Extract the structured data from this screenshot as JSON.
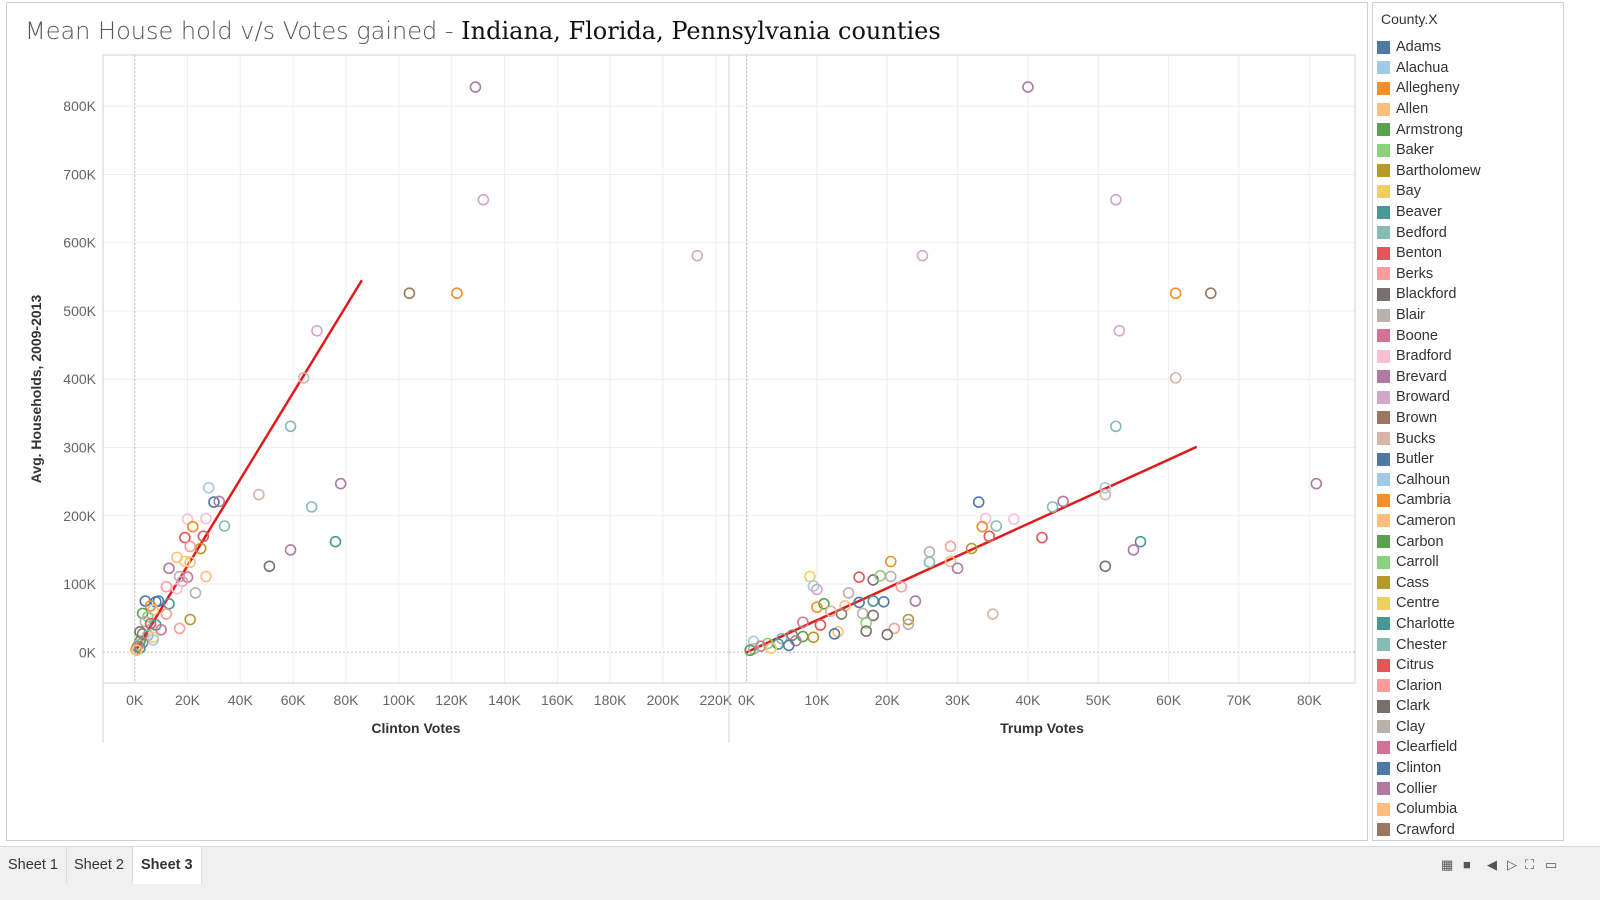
{
  "title": {
    "part1": "Mean House hold v/s Votes gained - ",
    "part2": "Indiana, Florida, Pennsylvania counties"
  },
  "legend": {
    "title": "County.X",
    "items": [
      {
        "label": "Adams",
        "color": "#4e79a7"
      },
      {
        "label": "Alachua",
        "color": "#a0cbe8"
      },
      {
        "label": "Allegheny",
        "color": "#f28e2b"
      },
      {
        "label": "Allen",
        "color": "#ffbe7d"
      },
      {
        "label": "Armstrong",
        "color": "#59a14f"
      },
      {
        "label": "Baker",
        "color": "#8cd17d"
      },
      {
        "label": "Bartholomew",
        "color": "#b6992d"
      },
      {
        "label": "Bay",
        "color": "#f1ce63"
      },
      {
        "label": "Beaver",
        "color": "#499894"
      },
      {
        "label": "Bedford",
        "color": "#86bcb6"
      },
      {
        "label": "Benton",
        "color": "#e15759"
      },
      {
        "label": "Berks",
        "color": "#ff9d9a"
      },
      {
        "label": "Blackford",
        "color": "#79706e"
      },
      {
        "label": "Blair",
        "color": "#bab0ac"
      },
      {
        "label": "Boone",
        "color": "#d37295"
      },
      {
        "label": "Bradford",
        "color": "#fabfd2"
      },
      {
        "label": "Brevard",
        "color": "#b07aa1"
      },
      {
        "label": "Broward",
        "color": "#d4a6c8"
      },
      {
        "label": "Brown",
        "color": "#9d7660"
      },
      {
        "label": "Bucks",
        "color": "#d7b5a6"
      },
      {
        "label": "Butler",
        "color": "#4e79a7"
      },
      {
        "label": "Calhoun",
        "color": "#a0cbe8"
      },
      {
        "label": "Cambria",
        "color": "#f28e2b"
      },
      {
        "label": "Cameron",
        "color": "#ffbe7d"
      },
      {
        "label": "Carbon",
        "color": "#59a14f"
      },
      {
        "label": "Carroll",
        "color": "#8cd17d"
      },
      {
        "label": "Cass",
        "color": "#b6992d"
      },
      {
        "label": "Centre",
        "color": "#f1ce63"
      },
      {
        "label": "Charlotte",
        "color": "#499894"
      },
      {
        "label": "Chester",
        "color": "#86bcb6"
      },
      {
        "label": "Citrus",
        "color": "#e15759"
      },
      {
        "label": "Clarion",
        "color": "#ff9d9a"
      },
      {
        "label": "Clark",
        "color": "#79706e"
      },
      {
        "label": "Clay",
        "color": "#bab0ac"
      },
      {
        "label": "Clearfield",
        "color": "#d37295"
      },
      {
        "label": "Clinton",
        "color": "#4e79a7"
      },
      {
        "label": "Collier",
        "color": "#b07aa1"
      },
      {
        "label": "Columbia",
        "color": "#ffbe7d"
      },
      {
        "label": "Crawford",
        "color": "#9d7660"
      }
    ]
  },
  "tabs": [
    {
      "label": "Sheet 1",
      "active": false
    },
    {
      "label": "Sheet 2",
      "active": false
    },
    {
      "label": "Sheet 3",
      "active": true
    }
  ],
  "chart_data": [
    {
      "type": "scatter",
      "xlabel": "Clinton Votes",
      "ylabel": "Avg. Households, 2009-2013",
      "xlim": [
        -12000,
        225000
      ],
      "ylim": [
        -45000,
        875000
      ],
      "x_ticks": [
        "0K",
        "20K",
        "40K",
        "60K",
        "80K",
        "100K",
        "120K",
        "140K",
        "160K",
        "180K",
        "200K",
        "220K"
      ],
      "y_ticks": [
        "0K",
        "100K",
        "200K",
        "300K",
        "400K",
        "500K",
        "600K",
        "700K",
        "800K"
      ],
      "trend_line": {
        "x": [
          0,
          86000
        ],
        "y": [
          0,
          545000
        ],
        "color": "#e31a1c"
      },
      "points": [
        {
          "x": 129000,
          "y": 828000,
          "color": "#b07aa1"
        },
        {
          "x": 132000,
          "y": 663000,
          "color": "#d4a6c8"
        },
        {
          "x": 213000,
          "y": 581000,
          "color": "#d4a6c8"
        },
        {
          "x": 104000,
          "y": 526000,
          "color": "#9d7660"
        },
        {
          "x": 122000,
          "y": 526000,
          "color": "#f28e2b"
        },
        {
          "x": 69000,
          "y": 471000,
          "color": "#d4a6c8"
        },
        {
          "x": 64000,
          "y": 402000,
          "color": "#d7b5a6"
        },
        {
          "x": 59000,
          "y": 331000,
          "color": "#86bcb6"
        },
        {
          "x": 78000,
          "y": 247000,
          "color": "#b07aa1"
        },
        {
          "x": 47000,
          "y": 231000,
          "color": "#d7b5a6"
        },
        {
          "x": 28000,
          "y": 241000,
          "color": "#a0cbe8"
        },
        {
          "x": 30000,
          "y": 220000,
          "color": "#4e79a7"
        },
        {
          "x": 32000,
          "y": 221000,
          "color": "#b07aa1"
        },
        {
          "x": 67000,
          "y": 213000,
          "color": "#86bcb6"
        },
        {
          "x": 20000,
          "y": 195000,
          "color": "#fabfd2"
        },
        {
          "x": 27000,
          "y": 196000,
          "color": "#fabfd2"
        },
        {
          "x": 34000,
          "y": 185000,
          "color": "#86bcb6"
        },
        {
          "x": 22000,
          "y": 184000,
          "color": "#f28e2b"
        },
        {
          "x": 19000,
          "y": 168000,
          "color": "#e15759"
        },
        {
          "x": 26000,
          "y": 170000,
          "color": "#e15759"
        },
        {
          "x": 76000,
          "y": 162000,
          "color": "#499894"
        },
        {
          "x": 59000,
          "y": 150000,
          "color": "#b07aa1"
        },
        {
          "x": 25000,
          "y": 152000,
          "color": "#b6992d"
        },
        {
          "x": 21000,
          "y": 155000,
          "color": "#ff9d9a"
        },
        {
          "x": 16000,
          "y": 139000,
          "color": "#ffbe7d"
        },
        {
          "x": 19000,
          "y": 133000,
          "color": "#f1ce63"
        },
        {
          "x": 21000,
          "y": 132000,
          "color": "#ffbe7d"
        },
        {
          "x": 51000,
          "y": 126000,
          "color": "#79706e"
        },
        {
          "x": 13000,
          "y": 123000,
          "color": "#b07aa1"
        },
        {
          "x": 17000,
          "y": 111000,
          "color": "#bab0ac"
        },
        {
          "x": 20000,
          "y": 110000,
          "color": "#d37295"
        },
        {
          "x": 27000,
          "y": 111000,
          "color": "#ffbe7d"
        },
        {
          "x": 18000,
          "y": 104000,
          "color": "#d4a6c8"
        },
        {
          "x": 12000,
          "y": 96000,
          "color": "#ff9d9a"
        },
        {
          "x": 16000,
          "y": 93000,
          "color": "#fabfd2"
        },
        {
          "x": 23000,
          "y": 87000,
          "color": "#bab0ac"
        },
        {
          "x": 4000,
          "y": 75000,
          "color": "#4e79a7"
        },
        {
          "x": 8000,
          "y": 74000,
          "color": "#4e79a7"
        },
        {
          "x": 9000,
          "y": 75000,
          "color": "#4e79a7"
        },
        {
          "x": 13000,
          "y": 71000,
          "color": "#499894"
        },
        {
          "x": 6000,
          "y": 68000,
          "color": "#f28e2b"
        },
        {
          "x": 7000,
          "y": 62000,
          "color": "#ffbe7d"
        },
        {
          "x": 3000,
          "y": 57000,
          "color": "#59a14f"
        },
        {
          "x": 5000,
          "y": 52000,
          "color": "#8cd17d"
        },
        {
          "x": 12000,
          "y": 56000,
          "color": "#ff9d9a"
        },
        {
          "x": 21000,
          "y": 48000,
          "color": "#b6992d"
        },
        {
          "x": 4000,
          "y": 45000,
          "color": "#bab0ac"
        },
        {
          "x": 6000,
          "y": 42000,
          "color": "#e15759"
        },
        {
          "x": 8000,
          "y": 40000,
          "color": "#499894"
        },
        {
          "x": 17000,
          "y": 35000,
          "color": "#ff9d9a"
        },
        {
          "x": 10000,
          "y": 33000,
          "color": "#d37295"
        },
        {
          "x": 2000,
          "y": 30000,
          "color": "#79706e"
        },
        {
          "x": 3000,
          "y": 27000,
          "color": "#9d7660"
        },
        {
          "x": 5000,
          "y": 25000,
          "color": "#86bcb6"
        },
        {
          "x": 7000,
          "y": 22000,
          "color": "#f1ce63"
        },
        {
          "x": 7000,
          "y": 18000,
          "color": "#a0cbe8"
        },
        {
          "x": 2000,
          "y": 16000,
          "color": "#59a14f"
        },
        {
          "x": 3000,
          "y": 14000,
          "color": "#b07aa1"
        },
        {
          "x": 1500,
          "y": 11000,
          "color": "#8cd17d"
        },
        {
          "x": 1000,
          "y": 8000,
          "color": "#d37295"
        },
        {
          "x": 2000,
          "y": 6000,
          "color": "#499894"
        },
        {
          "x": 500,
          "y": 4000,
          "color": "#b6992d"
        },
        {
          "x": 800,
          "y": 3000,
          "color": "#ffbe7d"
        }
      ]
    },
    {
      "type": "scatter",
      "xlabel": "Trump Votes",
      "ylabel": "",
      "xlim": [
        -2500,
        86500
      ],
      "ylim": [
        -45000,
        875000
      ],
      "x_ticks": [
        "0K",
        "10K",
        "20K",
        "30K",
        "40K",
        "50K",
        "60K",
        "70K",
        "80K"
      ],
      "y_ticks": [],
      "trend_line": {
        "x": [
          0,
          64000
        ],
        "y": [
          0,
          301000
        ],
        "color": "#e31a1c"
      },
      "points": [
        {
          "x": 40000,
          "y": 828000,
          "color": "#b07aa1"
        },
        {
          "x": 52500,
          "y": 663000,
          "color": "#d4a6c8"
        },
        {
          "x": 25000,
          "y": 581000,
          "color": "#d4a6c8"
        },
        {
          "x": 66000,
          "y": 526000,
          "color": "#9d7660"
        },
        {
          "x": 61000,
          "y": 526000,
          "color": "#f28e2b"
        },
        {
          "x": 53000,
          "y": 471000,
          "color": "#d4a6c8"
        },
        {
          "x": 61000,
          "y": 402000,
          "color": "#d7b5a6"
        },
        {
          "x": 52500,
          "y": 331000,
          "color": "#86bcb6"
        },
        {
          "x": 81000,
          "y": 247000,
          "color": "#b07aa1"
        },
        {
          "x": 51000,
          "y": 241000,
          "color": "#a0cbe8"
        },
        {
          "x": 51000,
          "y": 231000,
          "color": "#d7b5a6"
        },
        {
          "x": 33000,
          "y": 220000,
          "color": "#4e79a7"
        },
        {
          "x": 45000,
          "y": 221000,
          "color": "#b07aa1"
        },
        {
          "x": 43500,
          "y": 213000,
          "color": "#86bcb6"
        },
        {
          "x": 34000,
          "y": 196000,
          "color": "#fabfd2"
        },
        {
          "x": 38000,
          "y": 195000,
          "color": "#fabfd2"
        },
        {
          "x": 35500,
          "y": 185000,
          "color": "#86bcb6"
        },
        {
          "x": 33500,
          "y": 184000,
          "color": "#f28e2b"
        },
        {
          "x": 34500,
          "y": 170000,
          "color": "#e15759"
        },
        {
          "x": 42000,
          "y": 168000,
          "color": "#e15759"
        },
        {
          "x": 56000,
          "y": 162000,
          "color": "#499894"
        },
        {
          "x": 55000,
          "y": 150000,
          "color": "#b07aa1"
        },
        {
          "x": 32000,
          "y": 152000,
          "color": "#b6992d"
        },
        {
          "x": 29000,
          "y": 155000,
          "color": "#ff9d9a"
        },
        {
          "x": 26000,
          "y": 147000,
          "color": "#bab0ac"
        },
        {
          "x": 20500,
          "y": 133000,
          "color": "#f28e2b"
        },
        {
          "x": 26000,
          "y": 132000,
          "color": "#86bcb6"
        },
        {
          "x": 29000,
          "y": 133000,
          "color": "#ffbe7d"
        },
        {
          "x": 51000,
          "y": 126000,
          "color": "#79706e"
        },
        {
          "x": 30000,
          "y": 123000,
          "color": "#b07aa1"
        },
        {
          "x": 9000,
          "y": 111000,
          "color": "#f1ce63"
        },
        {
          "x": 16000,
          "y": 110000,
          "color": "#e15759"
        },
        {
          "x": 18000,
          "y": 106000,
          "color": "#79706e"
        },
        {
          "x": 19000,
          "y": 112000,
          "color": "#8cd17d"
        },
        {
          "x": 20500,
          "y": 111000,
          "color": "#bab0ac"
        },
        {
          "x": 22000,
          "y": 96000,
          "color": "#ff9d9a"
        },
        {
          "x": 9500,
          "y": 97000,
          "color": "#a0cbe8"
        },
        {
          "x": 10000,
          "y": 92000,
          "color": "#d4a6c8"
        },
        {
          "x": 14500,
          "y": 87000,
          "color": "#bab0ac"
        },
        {
          "x": 24000,
          "y": 75000,
          "color": "#b07aa1"
        },
        {
          "x": 11000,
          "y": 71000,
          "color": "#59a14f"
        },
        {
          "x": 16000,
          "y": 73000,
          "color": "#4e79a7"
        },
        {
          "x": 18000,
          "y": 75000,
          "color": "#499894"
        },
        {
          "x": 19500,
          "y": 74000,
          "color": "#4e79a7"
        },
        {
          "x": 10000,
          "y": 66000,
          "color": "#f28e2b"
        },
        {
          "x": 14000,
          "y": 68000,
          "color": "#ffbe7d"
        },
        {
          "x": 12000,
          "y": 60000,
          "color": "#d7b5a6"
        },
        {
          "x": 13500,
          "y": 56000,
          "color": "#9d7660"
        },
        {
          "x": 16500,
          "y": 57000,
          "color": "#bab0ac"
        },
        {
          "x": 18000,
          "y": 54000,
          "color": "#79706e"
        },
        {
          "x": 35000,
          "y": 56000,
          "color": "#d7b5a6"
        },
        {
          "x": 23000,
          "y": 48000,
          "color": "#b6992d"
        },
        {
          "x": 17000,
          "y": 43000,
          "color": "#8cd17d"
        },
        {
          "x": 23000,
          "y": 41000,
          "color": "#bab0ac"
        },
        {
          "x": 8000,
          "y": 44000,
          "color": "#d37295"
        },
        {
          "x": 10500,
          "y": 40000,
          "color": "#e15759"
        },
        {
          "x": 21000,
          "y": 35000,
          "color": "#ff9d9a"
        },
        {
          "x": 17000,
          "y": 31000,
          "color": "#79706e"
        },
        {
          "x": 13000,
          "y": 30000,
          "color": "#ffbe7d"
        },
        {
          "x": 12500,
          "y": 27000,
          "color": "#4e79a7"
        },
        {
          "x": 20000,
          "y": 26000,
          "color": "#79706e"
        },
        {
          "x": 6500,
          "y": 25000,
          "color": "#9d7660"
        },
        {
          "x": 8000,
          "y": 23000,
          "color": "#59a14f"
        },
        {
          "x": 9500,
          "y": 22000,
          "color": "#b6992d"
        },
        {
          "x": 5000,
          "y": 20000,
          "color": "#86bcb6"
        },
        {
          "x": 7000,
          "y": 17000,
          "color": "#b07aa1"
        },
        {
          "x": 1000,
          "y": 16000,
          "color": "#a0cbe8"
        },
        {
          "x": 3000,
          "y": 13000,
          "color": "#8cd17d"
        },
        {
          "x": 4500,
          "y": 12000,
          "color": "#499894"
        },
        {
          "x": 2000,
          "y": 9000,
          "color": "#d37295"
        },
        {
          "x": 6000,
          "y": 10000,
          "color": "#4e79a7"
        },
        {
          "x": 1000,
          "y": 5000,
          "color": "#bab0ac"
        },
        {
          "x": 3500,
          "y": 6000,
          "color": "#f1ce63"
        },
        {
          "x": 500,
          "y": 3000,
          "color": "#59a14f"
        }
      ]
    }
  ]
}
